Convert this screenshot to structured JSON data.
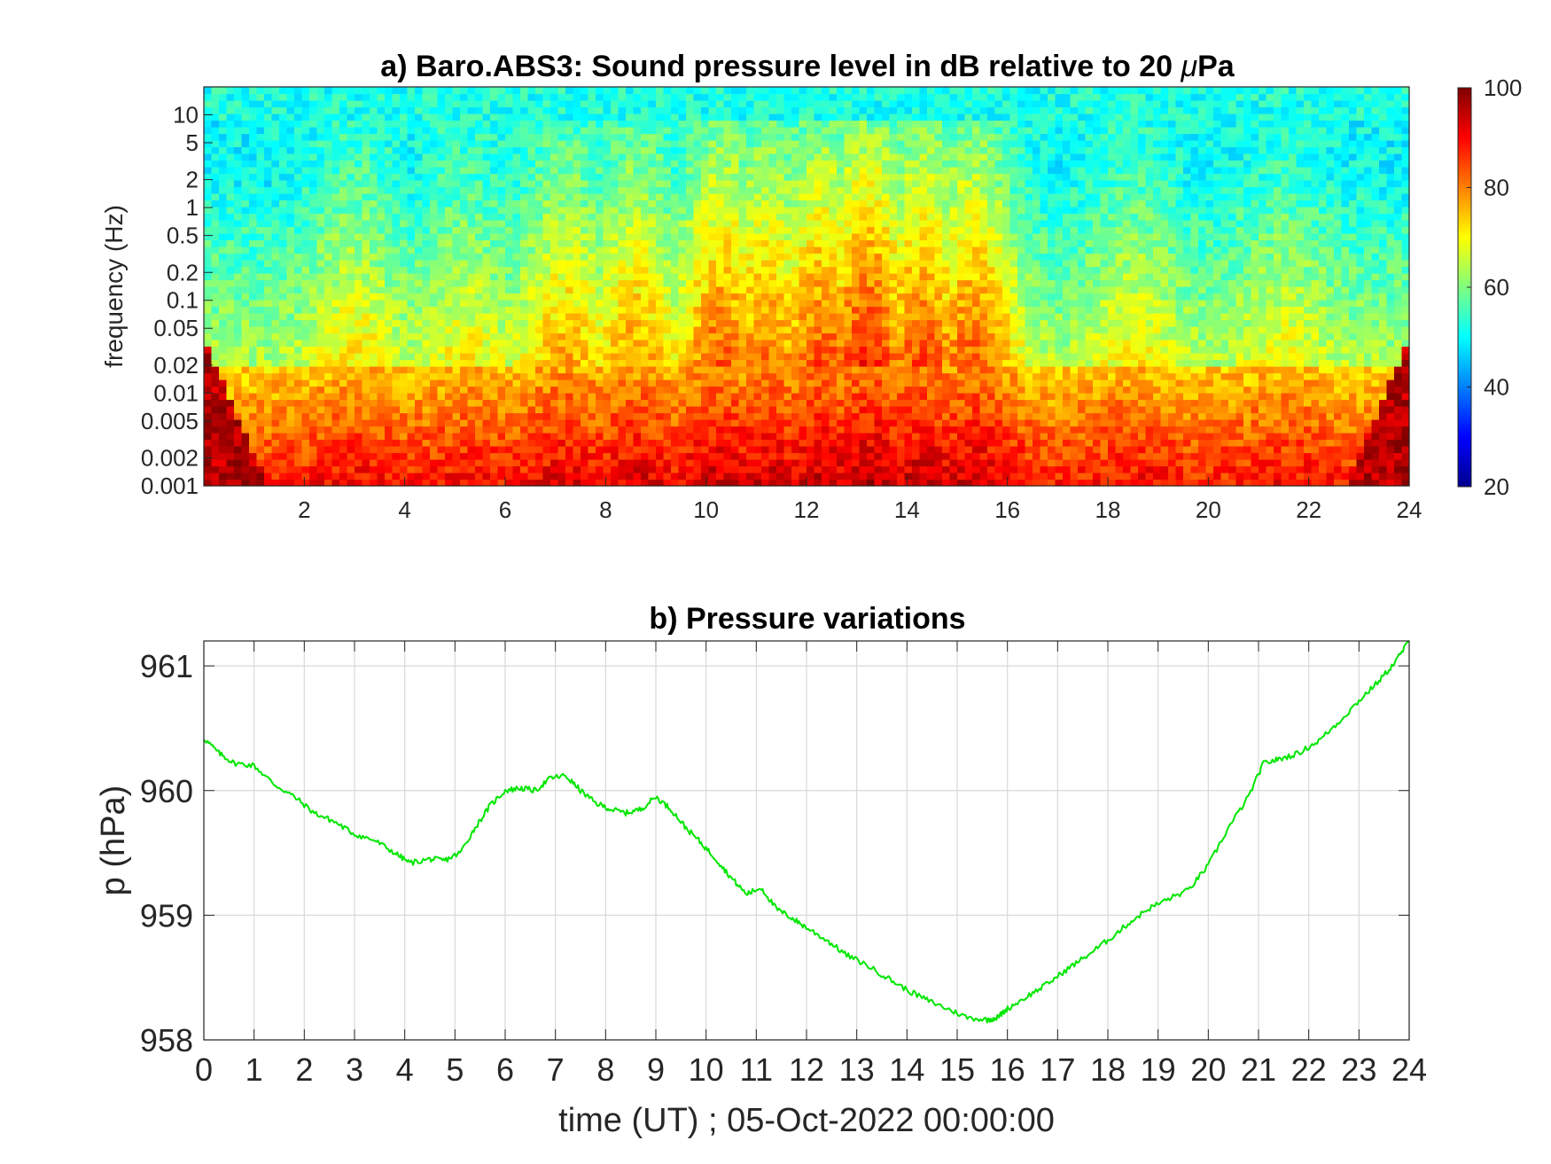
{
  "chart_data": [
    {
      "type": "heatmap",
      "title": "a) Baro.ABS3: Sound pressure level in dB relative to 20 μPa",
      "title_prefix": "a) Baro.ABS3: Sound pressure level in dB relative to 20 ",
      "title_mu": "μ",
      "title_suffix": "Pa",
      "xlabel": "",
      "ylabel": "frequency (Hz)",
      "xlim": [
        0,
        24
      ],
      "ylim": [
        0.001,
        20
      ],
      "yscale": "log",
      "x_ticks": [
        2,
        4,
        6,
        8,
        10,
        12,
        14,
        16,
        18,
        20,
        22,
        24
      ],
      "x_tick_labels": [
        "2",
        "4",
        "6",
        "8",
        "10",
        "12",
        "14",
        "16",
        "18",
        "20",
        "22",
        "24"
      ],
      "y_ticks": [
        0.001,
        0.002,
        0.005,
        0.01,
        0.02,
        0.05,
        0.1,
        0.2,
        0.5,
        1,
        2,
        5,
        10
      ],
      "y_tick_labels": [
        "0.001",
        "0.002",
        "0.005",
        "0.01",
        "0.02",
        "0.05",
        "0.1",
        "0.2",
        "0.5",
        "1",
        "2",
        "5",
        "10"
      ],
      "colormap": "jet",
      "colorbar": {
        "range": [
          20,
          100
        ],
        "ticks": [
          20,
          40,
          60,
          80,
          100
        ],
        "tick_labels": [
          "20",
          "40",
          "60",
          "80",
          "100"
        ],
        "placement": "right"
      },
      "activity_windows": [
        {
          "center": 3.0,
          "level": 0.35
        },
        {
          "center": 5.2,
          "level": 0.3
        },
        {
          "center": 7.2,
          "level": 0.55
        },
        {
          "center": 8.6,
          "level": 0.6
        },
        {
          "center": 10.3,
          "level": 0.8
        },
        {
          "center": 11.2,
          "level": 0.75
        },
        {
          "center": 12.3,
          "level": 0.85
        },
        {
          "center": 13.2,
          "level": 1.0
        },
        {
          "center": 14.3,
          "level": 0.85
        },
        {
          "center": 15.3,
          "level": 0.8
        },
        {
          "center": 18.5,
          "level": 0.3
        },
        {
          "center": 21.5,
          "level": 0.25
        }
      ]
    },
    {
      "type": "line",
      "title": "b) Pressure variations",
      "xlabel": "time (UT) ; 05-Oct-2022 00:00:00",
      "ylabel": "p (hPa)",
      "xlim": [
        0,
        24
      ],
      "ylim": [
        958,
        961.2
      ],
      "grid": true,
      "x_ticks": [
        0,
        1,
        2,
        3,
        4,
        5,
        6,
        7,
        8,
        9,
        10,
        11,
        12,
        13,
        14,
        15,
        16,
        17,
        18,
        19,
        20,
        21,
        22,
        23,
        24
      ],
      "x_tick_labels": [
        "0",
        "1",
        "2",
        "3",
        "4",
        "5",
        "6",
        "7",
        "8",
        "9",
        "10",
        "11",
        "12",
        "13",
        "14",
        "15",
        "16",
        "17",
        "18",
        "19",
        "20",
        "21",
        "22",
        "23",
        "24"
      ],
      "y_ticks": [
        958,
        959,
        960,
        961
      ],
      "y_tick_labels": [
        "958",
        "959",
        "960",
        "961"
      ],
      "series": [
        {
          "color": "#00e600",
          "x": [
            0,
            0.3,
            0.6,
            1.0,
            1.4,
            1.8,
            2.2,
            2.6,
            3.0,
            3.4,
            3.8,
            4.1,
            4.5,
            4.8,
            5.1,
            5.4,
            5.7,
            6.0,
            6.3,
            6.6,
            6.9,
            7.2,
            7.5,
            7.8,
            8.1,
            8.4,
            8.7,
            9.0,
            9.3,
            9.6,
            9.9,
            10.2,
            10.5,
            10.8,
            11.1,
            11.4,
            11.7,
            12.0,
            12.4,
            12.8,
            13.2,
            13.6,
            14.0,
            14.4,
            14.8,
            15.2,
            15.6,
            15.8,
            16.0,
            16.4,
            16.8,
            17.2,
            17.6,
            18.0,
            18.4,
            18.8,
            19.2,
            19.6,
            20.0,
            20.4,
            20.8,
            21.1,
            21.4,
            21.8,
            22.2,
            22.6,
            23.0,
            23.4,
            23.7,
            24.0
          ],
          "y": [
            960.42,
            960.3,
            960.22,
            960.2,
            960.05,
            959.95,
            959.82,
            959.75,
            959.65,
            959.6,
            959.5,
            959.42,
            959.45,
            959.44,
            959.5,
            959.7,
            959.88,
            960.0,
            960.02,
            960.0,
            960.1,
            960.12,
            960.0,
            959.9,
            959.85,
            959.82,
            959.85,
            959.95,
            959.85,
            959.7,
            959.58,
            959.45,
            959.3,
            959.17,
            959.22,
            959.05,
            958.98,
            958.9,
            958.8,
            958.68,
            958.6,
            958.5,
            958.4,
            958.32,
            958.25,
            958.18,
            958.16,
            958.18,
            958.25,
            958.35,
            958.45,
            958.57,
            958.68,
            958.8,
            958.93,
            959.05,
            959.13,
            959.2,
            959.4,
            959.7,
            959.95,
            960.22,
            960.25,
            960.3,
            960.4,
            960.55,
            960.72,
            960.88,
            961.02,
            961.2
          ]
        }
      ]
    }
  ]
}
